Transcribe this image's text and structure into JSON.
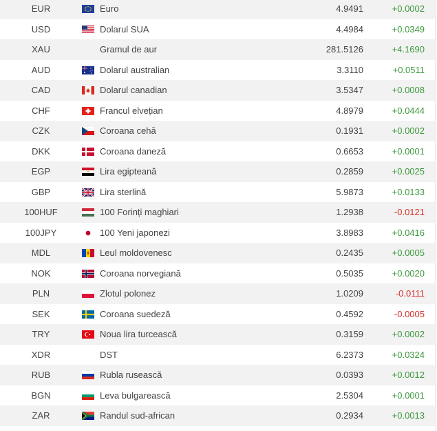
{
  "colors": {
    "positive": "#3d9a3d",
    "negative": "#d9302a",
    "row_alt": "#f2f2f2"
  },
  "rows": [
    {
      "code": "EUR",
      "flag": "eu-flag-icon",
      "name": "Euro",
      "rate": "4.9491",
      "change": "+0.0002",
      "dir": "pos"
    },
    {
      "code": "USD",
      "flag": "us-flag-icon",
      "name": "Dolarul SUA",
      "rate": "4.4984",
      "change": "+0.0349",
      "dir": "pos"
    },
    {
      "code": "XAU",
      "flag": "",
      "name": "Gramul de aur",
      "rate": "281.5126",
      "change": "+4.1690",
      "dir": "pos"
    },
    {
      "code": "AUD",
      "flag": "au-flag-icon",
      "name": "Dolarul australian",
      "rate": "3.3110",
      "change": "+0.0511",
      "dir": "pos"
    },
    {
      "code": "CAD",
      "flag": "ca-flag-icon",
      "name": "Dolarul canadian",
      "rate": "3.5347",
      "change": "+0.0008",
      "dir": "pos"
    },
    {
      "code": "CHF",
      "flag": "ch-flag-icon",
      "name": "Francul elvețian",
      "rate": "4.8979",
      "change": "+0.0444",
      "dir": "pos"
    },
    {
      "code": "CZK",
      "flag": "cz-flag-icon",
      "name": "Coroana cehă",
      "rate": "0.1931",
      "change": "+0.0002",
      "dir": "pos"
    },
    {
      "code": "DKK",
      "flag": "dk-flag-icon",
      "name": "Coroana daneză",
      "rate": "0.6653",
      "change": "+0.0001",
      "dir": "pos"
    },
    {
      "code": "EGP",
      "flag": "eg-flag-icon",
      "name": "Lira egipteană",
      "rate": "0.2859",
      "change": "+0.0025",
      "dir": "pos"
    },
    {
      "code": "GBP",
      "flag": "gb-flag-icon",
      "name": "Lira sterlină",
      "rate": "5.9873",
      "change": "+0.0133",
      "dir": "pos"
    },
    {
      "code": "100HUF",
      "flag": "hu-flag-icon",
      "name": "100 Forinți maghiari",
      "rate": "1.2938",
      "change": "-0.0121",
      "dir": "neg"
    },
    {
      "code": "100JPY",
      "flag": "jp-flag-icon",
      "name": "100 Yeni japonezi",
      "rate": "3.8983",
      "change": "+0.0416",
      "dir": "pos"
    },
    {
      "code": "MDL",
      "flag": "md-flag-icon",
      "name": "Leul moldovenesc",
      "rate": "0.2435",
      "change": "+0.0005",
      "dir": "pos"
    },
    {
      "code": "NOK",
      "flag": "no-flag-icon",
      "name": "Coroana norvegiană",
      "rate": "0.5035",
      "change": "+0.0020",
      "dir": "pos"
    },
    {
      "code": "PLN",
      "flag": "pl-flag-icon",
      "name": "Zlotul polonez",
      "rate": "1.0209",
      "change": "-0.0111",
      "dir": "neg"
    },
    {
      "code": "SEK",
      "flag": "se-flag-icon",
      "name": "Coroana suedeză",
      "rate": "0.4592",
      "change": "-0.0005",
      "dir": "neg"
    },
    {
      "code": "TRY",
      "flag": "tr-flag-icon",
      "name": "Noua lira turcească",
      "rate": "0.3159",
      "change": "+0.0002",
      "dir": "pos"
    },
    {
      "code": "XDR",
      "flag": "",
      "name": "DST",
      "rate": "6.2373",
      "change": "+0.0324",
      "dir": "pos"
    },
    {
      "code": "RUB",
      "flag": "ru-flag-icon",
      "name": "Rubla rusească",
      "rate": "0.0393",
      "change": "+0.0012",
      "dir": "pos"
    },
    {
      "code": "BGN",
      "flag": "bg-flag-icon",
      "name": "Leva bulgarească",
      "rate": "2.5304",
      "change": "+0.0001",
      "dir": "pos"
    },
    {
      "code": "ZAR",
      "flag": "za-flag-icon",
      "name": "Randul sud-african",
      "rate": "0.2934",
      "change": "+0.0013",
      "dir": "pos"
    }
  ]
}
